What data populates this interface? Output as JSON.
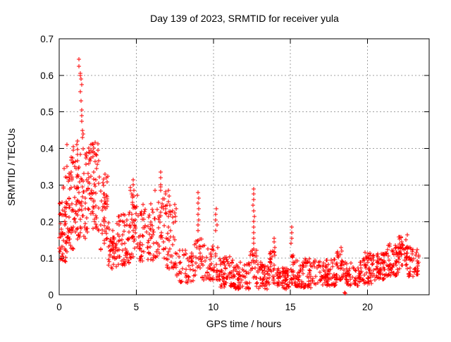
{
  "title": "Day 139 of 2023, SRMTID for receiver yula",
  "colors": {
    "points": "#ff0000",
    "grid": "#a0a0a0",
    "axis": "#000000",
    "background": "#ffffff"
  },
  "chart_data": {
    "type": "scatter",
    "marker": "plus",
    "title": "Day 139 of 2023, SRMTID for receiver yula",
    "xlabel": "GPS time / hours",
    "ylabel": "SRMTID / TECUs",
    "xlim": [
      0,
      24
    ],
    "ylim": [
      0,
      0.7
    ],
    "grid": true,
    "legend": "none",
    "x_ticks": [
      {
        "value": 0,
        "label": "0"
      },
      {
        "value": 5,
        "label": "5"
      },
      {
        "value": 10,
        "label": "10"
      },
      {
        "value": 15,
        "label": "15"
      },
      {
        "value": 20,
        "label": "20"
      }
    ],
    "y_ticks": [
      {
        "value": 0.0,
        "label": "0"
      },
      {
        "value": 0.1,
        "label": "0.1"
      },
      {
        "value": 0.2,
        "label": "0.2"
      },
      {
        "value": 0.3,
        "label": "0.3"
      },
      {
        "value": 0.4,
        "label": "0.4"
      },
      {
        "value": 0.5,
        "label": "0.5"
      },
      {
        "value": 0.6,
        "label": "0.6"
      },
      {
        "value": 0.7,
        "label": "0.7"
      }
    ],
    "seed": 139,
    "bands": [
      {
        "x0": 0.0,
        "x1": 0.55,
        "n": 55,
        "ymin": 0.09,
        "ymax": 0.26,
        "pow": 1.1
      },
      {
        "x0": 0.1,
        "x1": 0.6,
        "n": 6,
        "ymin": 0.27,
        "ymax": 0.36,
        "pow": 1.0
      },
      {
        "x0": 0.55,
        "x1": 1.05,
        "n": 55,
        "ymin": 0.12,
        "ymax": 0.38,
        "pow": 1.2
      },
      {
        "x0": 1.05,
        "x1": 1.85,
        "n": 70,
        "ymin": 0.15,
        "ymax": 0.4,
        "pow": 1.1
      },
      {
        "x0": 1.85,
        "x1": 2.6,
        "n": 68,
        "ymin": 0.17,
        "ymax": 0.42,
        "pow": 0.9
      },
      {
        "x0": 2.6,
        "x1": 3.2,
        "n": 45,
        "ymin": 0.12,
        "ymax": 0.33,
        "pow": 1.1
      },
      {
        "x0": 3.2,
        "x1": 3.7,
        "n": 40,
        "ymin": 0.07,
        "ymax": 0.18,
        "pow": 1.2
      },
      {
        "x0": 3.7,
        "x1": 4.6,
        "n": 60,
        "ymin": 0.08,
        "ymax": 0.24,
        "pow": 1.3
      },
      {
        "x0": 4.6,
        "x1": 5.1,
        "n": 38,
        "ymin": 0.1,
        "ymax": 0.3,
        "pow": 1.2
      },
      {
        "x0": 5.1,
        "x1": 6.2,
        "n": 65,
        "ymin": 0.09,
        "ymax": 0.25,
        "pow": 1.4
      },
      {
        "x0": 6.2,
        "x1": 6.9,
        "n": 42,
        "ymin": 0.1,
        "ymax": 0.3,
        "pow": 1.3
      },
      {
        "x0": 6.9,
        "x1": 7.6,
        "n": 48,
        "ymin": 0.07,
        "ymax": 0.26,
        "pow": 1.4
      },
      {
        "x0": 7.6,
        "x1": 8.7,
        "n": 46,
        "ymin": 0.03,
        "ymax": 0.13,
        "pow": 1.3
      },
      {
        "x0": 8.7,
        "x1": 9.25,
        "n": 26,
        "ymin": 0.05,
        "ymax": 0.16,
        "pow": 1.2
      },
      {
        "x0": 9.25,
        "x1": 10.35,
        "n": 55,
        "ymin": 0.04,
        "ymax": 0.14,
        "pow": 1.3
      },
      {
        "x0": 10.35,
        "x1": 11.3,
        "n": 70,
        "ymin": 0.02,
        "ymax": 0.105,
        "pow": 1.3
      },
      {
        "x0": 11.3,
        "x1": 12.35,
        "n": 70,
        "ymin": 0.015,
        "ymax": 0.09,
        "pow": 1.3
      },
      {
        "x0": 12.4,
        "x1": 12.8,
        "n": 22,
        "ymin": 0.04,
        "ymax": 0.13,
        "pow": 1.2
      },
      {
        "x0": 12.8,
        "x1": 13.65,
        "n": 55,
        "ymin": 0.015,
        "ymax": 0.09,
        "pow": 1.3
      },
      {
        "x0": 13.65,
        "x1": 14.15,
        "n": 26,
        "ymin": 0.03,
        "ymax": 0.12,
        "pow": 1.2
      },
      {
        "x0": 14.15,
        "x1": 14.9,
        "n": 52,
        "ymin": 0.015,
        "ymax": 0.08,
        "pow": 1.3
      },
      {
        "x0": 14.9,
        "x1": 15.25,
        "n": 20,
        "ymin": 0.03,
        "ymax": 0.12,
        "pow": 1.2
      },
      {
        "x0": 15.25,
        "x1": 16.5,
        "n": 80,
        "ymin": 0.02,
        "ymax": 0.1,
        "pow": 1.4
      },
      {
        "x0": 16.5,
        "x1": 18.0,
        "n": 90,
        "ymin": 0.025,
        "ymax": 0.1,
        "pow": 1.4
      },
      {
        "x0": 18.0,
        "x1": 18.5,
        "n": 34,
        "ymin": 0.04,
        "ymax": 0.13,
        "pow": 1.3
      },
      {
        "x0": 18.55,
        "x1": 19.6,
        "n": 60,
        "ymin": 0.025,
        "ymax": 0.09,
        "pow": 1.3
      },
      {
        "x0": 19.6,
        "x1": 20.4,
        "n": 55,
        "ymin": 0.03,
        "ymax": 0.12,
        "pow": 1.3
      },
      {
        "x0": 20.4,
        "x1": 21.3,
        "n": 60,
        "ymin": 0.04,
        "ymax": 0.115,
        "pow": 1.2
      },
      {
        "x0": 21.3,
        "x1": 22.0,
        "n": 55,
        "ymin": 0.05,
        "ymax": 0.14,
        "pow": 1.1
      },
      {
        "x0": 22.0,
        "x1": 22.65,
        "n": 46,
        "ymin": 0.07,
        "ymax": 0.165,
        "pow": 1.0
      },
      {
        "x0": 22.65,
        "x1": 23.35,
        "n": 45,
        "ymin": 0.05,
        "ymax": 0.135,
        "pow": 1.1
      }
    ],
    "spikes": [
      {
        "x": 0.5,
        "ys": [
          0.41
        ]
      },
      {
        "x": 0.95,
        "ys": [
          0.405,
          0.395
        ]
      },
      {
        "x": 1.15,
        "ys": [
          0.42,
          0.41
        ]
      },
      {
        "x": 1.3,
        "ys": [
          0.645,
          0.625
        ]
      },
      {
        "x": 1.36,
        "ys": [
          0.605,
          0.6,
          0.59
        ]
      },
      {
        "x": 1.42,
        "ys": [
          0.575,
          0.555,
          0.53
        ]
      },
      {
        "x": 1.46,
        "ys": [
          0.505,
          0.49,
          0.475
        ]
      },
      {
        "x": 1.52,
        "ys": [
          0.45,
          0.44,
          0.43
        ]
      },
      {
        "x": 4.82,
        "ys": [
          0.315,
          0.3,
          0.285,
          0.27
        ]
      },
      {
        "x": 6.55,
        "ys": [
          0.335,
          0.32,
          0.3,
          0.285
        ]
      },
      {
        "x": 7.1,
        "ys": [
          0.285,
          0.27,
          0.255
        ]
      },
      {
        "x": 9.02,
        "ys": [
          0.28,
          0.265,
          0.25,
          0.235,
          0.22,
          0.205,
          0.19,
          0.175
        ]
      },
      {
        "x": 10.18,
        "ys": [
          0.235,
          0.22,
          0.205,
          0.19,
          0.175
        ]
      },
      {
        "x": 12.6,
        "ys": [
          0.29,
          0.275,
          0.26,
          0.245,
          0.23,
          0.215,
          0.2,
          0.185,
          0.17,
          0.155,
          0.14
        ]
      },
      {
        "x": 13.92,
        "ys": [
          0.155,
          0.145,
          0.13,
          0.12
        ]
      },
      {
        "x": 15.05,
        "ys": [
          0.185,
          0.17,
          0.155,
          0.14
        ]
      },
      {
        "x": 18.3,
        "ys": [
          0.13,
          0.12
        ]
      }
    ],
    "points": [
      [
        18.52,
        0.005
      ],
      [
        18.58,
        0.004
      ]
    ]
  }
}
